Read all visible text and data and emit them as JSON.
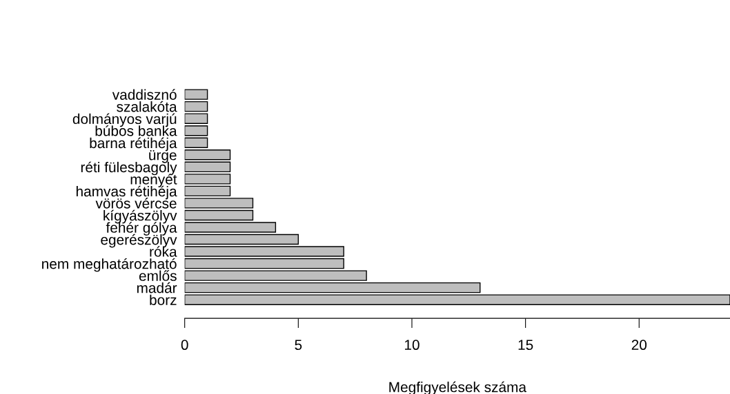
{
  "chart_data": {
    "type": "bar",
    "orientation": "horizontal",
    "xlabel": "Megfigyelések száma",
    "categories": [
      "vaddisznó",
      "szalakóta",
      "dolmányos varjú",
      "búbos banka",
      "barna rétihéja",
      "ürge",
      "réti fülesbagoly",
      "menyét",
      "hamvas rétihéja",
      "vörös vércse",
      "kígyászölyv",
      "fehér gólya",
      "egerészölyv",
      "róka",
      "nem meghatározható",
      "emlős",
      "madár",
      "borz"
    ],
    "values": [
      1,
      1,
      1,
      1,
      1,
      2,
      2,
      2,
      2,
      3,
      3,
      4,
      5,
      7,
      7,
      8,
      13,
      24
    ],
    "color": "#bebebe",
    "xlim": [
      0,
      24
    ],
    "xticks": [
      0,
      5,
      10,
      15,
      20
    ],
    "grid": false,
    "legend": false
  }
}
